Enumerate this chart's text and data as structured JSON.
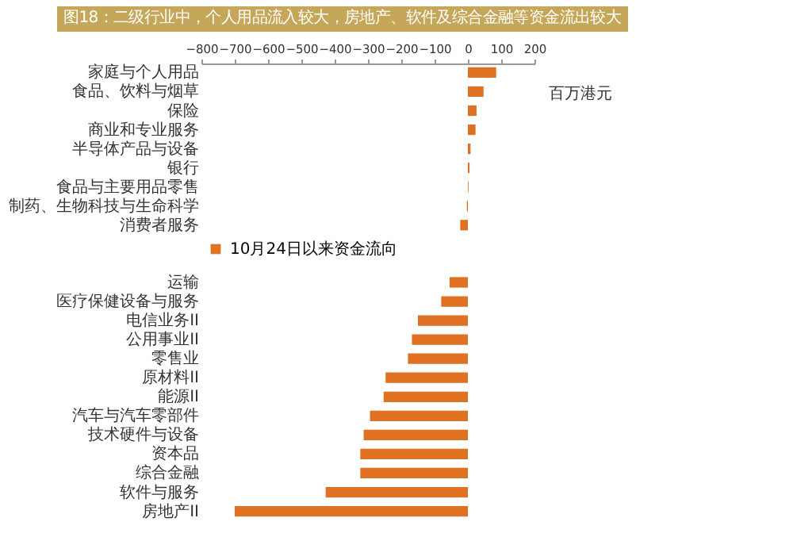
{
  "chart_data": {
    "type": "bar",
    "orientation": "horizontal",
    "title": "图18：二级行业中，个人用品流入较大，房地产、软件及综合金融等资金流出较大",
    "categories": [
      "家庭与个人用品",
      "食品、饮料与烟草",
      "保险",
      "商业和专业服务",
      "半导体产品与设备",
      "银行",
      "食品与主要用品零售",
      "制药、生物科技与生命科学",
      "消费者服务",
      null,
      null,
      "运输",
      "医疗保健设备与服务",
      "电信业务II",
      "公用事业II",
      "零售业",
      "原材料II",
      "能源II",
      "汽车与汽车零部件",
      "技术硬件与设备",
      "资本品",
      "综合金融",
      "软件与服务",
      "房地产II"
    ],
    "series": [
      {
        "name": "10月24日以来资金流向",
        "color": "#e07122",
        "values": [
          85,
          47,
          26,
          23,
          8,
          5,
          2,
          -3,
          -23,
          null,
          null,
          -55,
          -80,
          -150,
          -168,
          -180,
          -247,
          -253,
          -294,
          -313,
          -323,
          -323,
          -427,
          -700
        ]
      }
    ],
    "xlim": [
      -800,
      200
    ],
    "xticks": [
      -800,
      -700,
      -600,
      -500,
      -400,
      -300,
      -200,
      -100,
      0,
      100,
      200
    ],
    "grid": false,
    "legend": "left",
    "annotations": [
      "百万港元"
    ]
  }
}
